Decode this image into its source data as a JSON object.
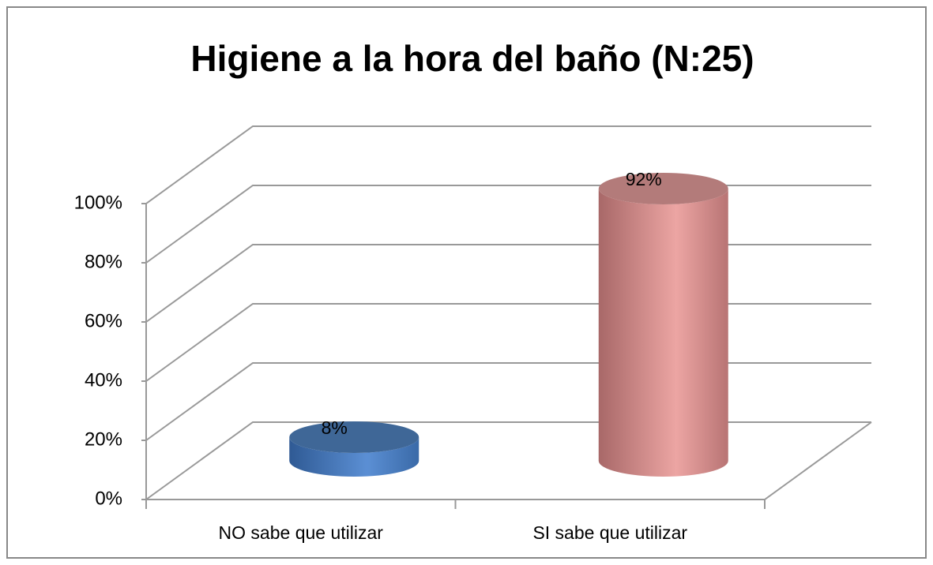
{
  "chart_data": {
    "type": "bar3d",
    "title": "Higiene a la hora del baño (N:25)",
    "categories": [
      "NO sabe que utilizar",
      "SI sabe que utilizar"
    ],
    "values": [
      8,
      92
    ],
    "value_labels": [
      "8%",
      "92%"
    ],
    "colors": [
      "#4f81bd",
      "#e09a98"
    ],
    "ylim": [
      0,
      100
    ],
    "yticks": [
      {
        "value": 0,
        "label": "0%"
      },
      {
        "value": 20,
        "label": "20%"
      },
      {
        "value": 40,
        "label": "40%"
      },
      {
        "value": 60,
        "label": "60%"
      },
      {
        "value": 80,
        "label": "80%"
      },
      {
        "value": 100,
        "label": "100%"
      }
    ],
    "grid": true
  }
}
